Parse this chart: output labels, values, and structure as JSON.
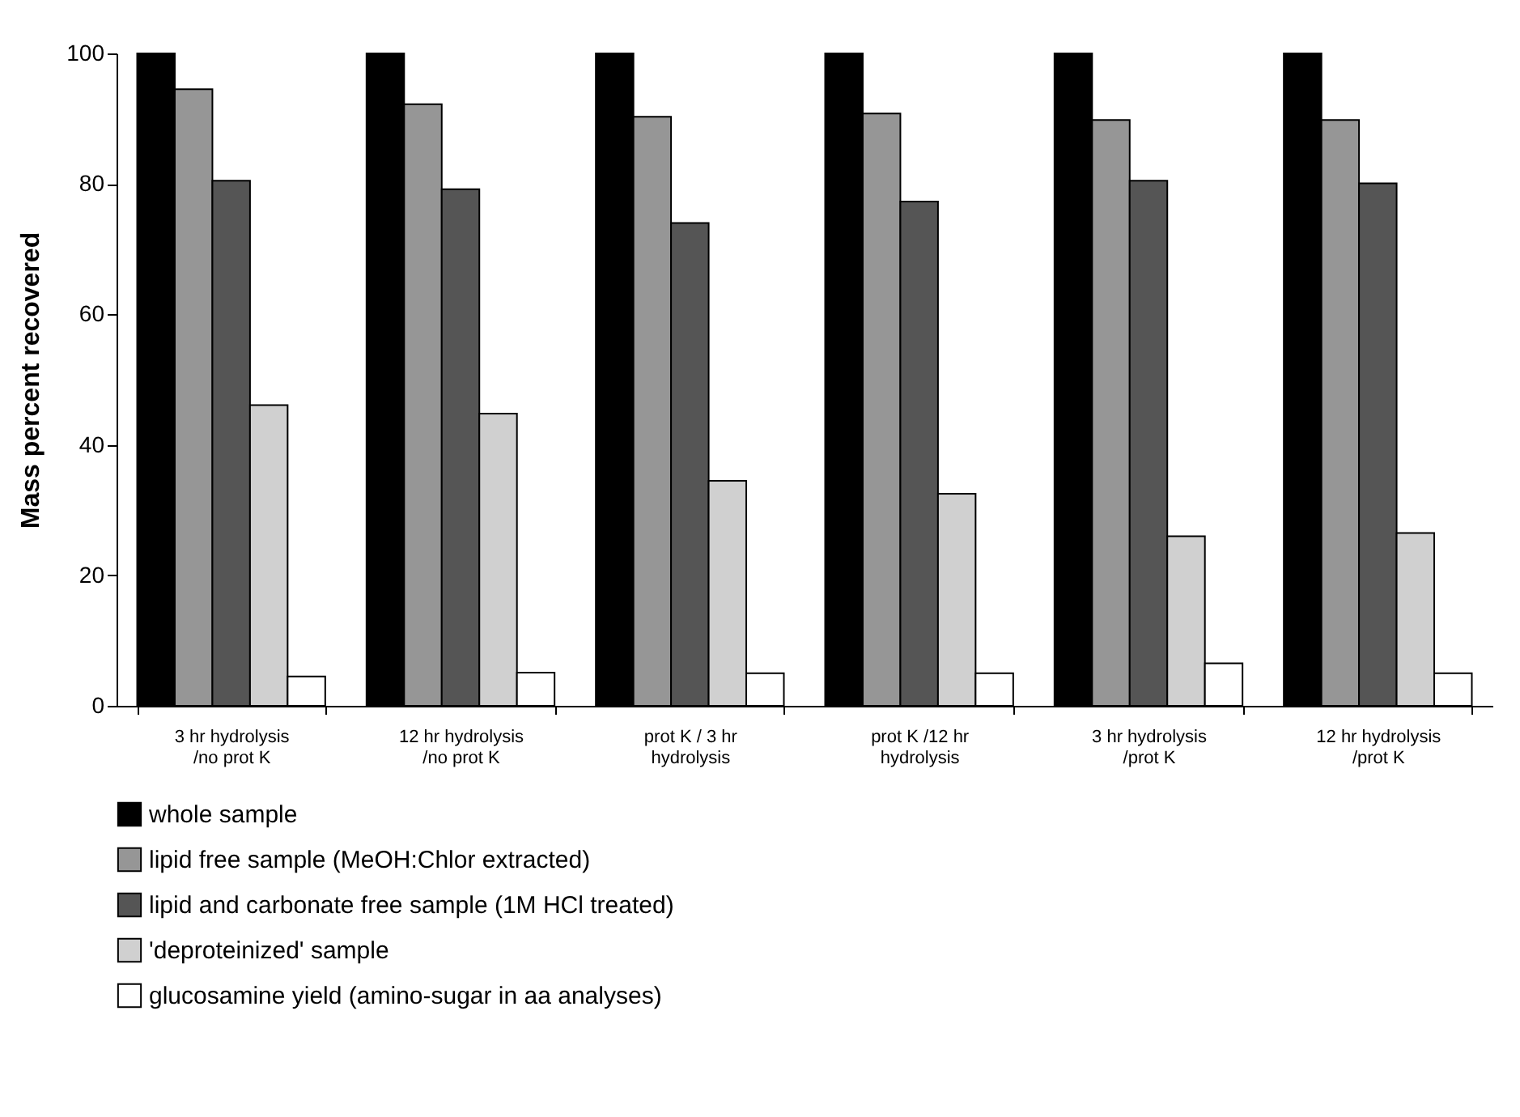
{
  "chart_data": {
    "type": "bar",
    "ylabel": "Mass percent recovered",
    "categories": [
      "3 hr hydrolysis /no prot K",
      "12 hr hydrolysis /no prot K",
      "prot K / 3 hr hydrolysis",
      "prot K /12 hr hydrolysis",
      "3 hr hydrolysis /prot K",
      "12 hr hydrolysis /prot K"
    ],
    "series": [
      {
        "name": "whole sample",
        "color": "#000000",
        "values": [
          100,
          100,
          100,
          100,
          100,
          100
        ]
      },
      {
        "name": "lipid free sample (MeOH:Chlor extracted)",
        "color": "#969696",
        "values": [
          94.5,
          92.2,
          90.3,
          90.8,
          89.8,
          89.8
        ]
      },
      {
        "name": "lipid and carbonate free sample (1M HCl treated)",
        "color": "#555555",
        "values": [
          80.5,
          79.2,
          74.0,
          77.3,
          80.5,
          80.1
        ]
      },
      {
        "name": "'deproteinized' sample",
        "color": "#d0d0d0",
        "values": [
          46.1,
          44.8,
          34.5,
          32.5,
          26.0,
          26.5
        ]
      },
      {
        "name": "glucosamine yield (amino-sugar in aa analyses)",
        "color": "#ffffff",
        "values": [
          4.5,
          5.1,
          5.0,
          5.0,
          6.5,
          5.0
        ]
      }
    ],
    "ylim": [
      0,
      100
    ],
    "yticks": [
      0,
      20,
      40,
      60,
      80,
      100
    ],
    "grid": false,
    "legend": "bottom"
  }
}
